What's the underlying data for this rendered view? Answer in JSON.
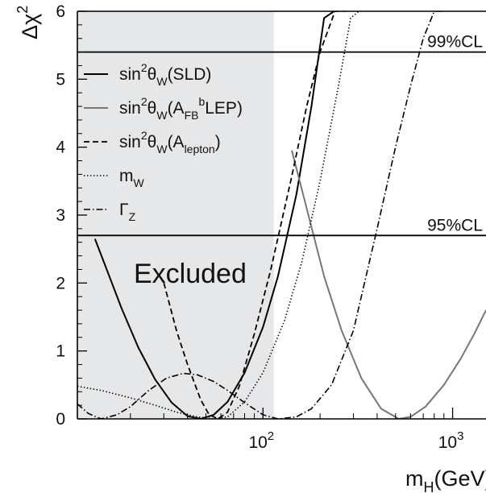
{
  "chart_data": {
    "type": "line",
    "x_scale": "log",
    "xlabel_main": "m",
    "xlabel_sub": "H",
    "xlabel_unit": "(GeV)",
    "ylabel_main": "Δχ",
    "ylabel_sup": "2",
    "xlim": [
      10.5,
      1500
    ],
    "ylim": [
      0,
      6
    ],
    "y_ticks": [
      "0",
      "1",
      "2",
      "3",
      "4",
      "5",
      "6"
    ],
    "x_ticks": [
      {
        "value": 100,
        "base": "10",
        "exp": "2"
      },
      {
        "value": 1000,
        "base": "10",
        "exp": "3"
      }
    ],
    "excluded_region": {
      "x_to": 114,
      "label": "Excluded",
      "color": "#e6e7e9"
    },
    "reference_lines": [
      {
        "y": 5.4,
        "label": "99%CL"
      },
      {
        "y": 2.7,
        "label": "95%CL"
      }
    ],
    "legend": [
      {
        "style": "solid",
        "color": "#000000",
        "parts": [
          [
            "t",
            "sin"
          ],
          [
            "sup",
            "2"
          ],
          [
            "t",
            "θ"
          ],
          [
            "sub",
            "W"
          ],
          [
            "t",
            "(SLD)"
          ]
        ]
      },
      {
        "style": "solid",
        "color": "#777777",
        "parts": [
          [
            "t",
            "sin"
          ],
          [
            "sup",
            "2"
          ],
          [
            "t",
            "θ"
          ],
          [
            "sub",
            "W"
          ],
          [
            "t",
            "(A"
          ],
          [
            "sub",
            "FB"
          ],
          [
            "sup",
            "b"
          ],
          [
            "t",
            "LEP)"
          ]
        ]
      },
      {
        "style": "dashed",
        "color": "#000000",
        "parts": [
          [
            "t",
            "sin"
          ],
          [
            "sup",
            "2"
          ],
          [
            "t",
            "θ"
          ],
          [
            "sub",
            "W"
          ],
          [
            "t",
            "(A"
          ],
          [
            "sub",
            "lepton"
          ],
          [
            "t",
            ")"
          ]
        ]
      },
      {
        "style": "dotted",
        "color": "#000000",
        "parts": [
          [
            "t",
            "m"
          ],
          [
            "sub",
            "W"
          ]
        ]
      },
      {
        "style": "dashdot",
        "color": "#000000",
        "parts": [
          [
            "t",
            "Γ"
          ],
          [
            "sub",
            "Z"
          ]
        ]
      }
    ],
    "series": [
      {
        "style": "solid",
        "color": "#000000",
        "x": [
          13,
          15,
          18,
          22,
          27,
          33,
          40,
          47,
          55,
          65,
          80,
          100,
          120,
          150,
          180,
          210,
          237
        ],
        "y": [
          2.65,
          2.2,
          1.62,
          1.05,
          0.58,
          0.24,
          0.04,
          0.0,
          0.06,
          0.25,
          0.68,
          1.35,
          2.1,
          3.3,
          4.6,
          5.9,
          6.0
        ]
      },
      {
        "style": "solid",
        "color": "#777777",
        "x": [
          142,
          170,
          210,
          260,
          330,
          420,
          520,
          600,
          720,
          900,
          1100,
          1300,
          1500
        ],
        "y": [
          3.95,
          3.1,
          2.1,
          1.3,
          0.6,
          0.15,
          0.0,
          0.03,
          0.18,
          0.5,
          0.88,
          1.25,
          1.6
        ]
      },
      {
        "style": "dashed",
        "color": "#000000",
        "x": [
          30,
          35,
          40,
          47,
          52,
          58,
          65,
          75,
          90,
          110,
          140,
          170,
          200,
          240,
          270
        ],
        "y": [
          2.0,
          1.3,
          0.8,
          0.28,
          0.06,
          0.0,
          0.1,
          0.48,
          1.25,
          2.2,
          3.5,
          4.6,
          5.4,
          6.0,
          6.0
        ]
      },
      {
        "style": "dotted",
        "color": "#000000",
        "x": [
          10.5,
          14,
          20,
          27,
          35,
          45,
          55,
          65,
          80,
          100,
          130,
          160,
          200,
          250,
          290,
          320
        ],
        "y": [
          0.48,
          0.42,
          0.31,
          0.2,
          0.1,
          0.03,
          0.0,
          0.03,
          0.25,
          0.68,
          1.45,
          2.3,
          3.5,
          4.9,
          5.9,
          6.0
        ]
      },
      {
        "style": "dashdot",
        "color": "#000000",
        "x": [
          10.5,
          12,
          14,
          17,
          20,
          25,
          31,
          38,
          45,
          55,
          65,
          80,
          100,
          120,
          150,
          180,
          230,
          300,
          400,
          500,
          600,
          700,
          800,
          900
        ],
        "y": [
          0.22,
          0.08,
          0.0,
          0.06,
          0.18,
          0.42,
          0.6,
          0.67,
          0.65,
          0.55,
          0.42,
          0.24,
          0.06,
          0.0,
          0.03,
          0.15,
          0.5,
          1.3,
          2.8,
          4.0,
          4.9,
          5.6,
          6.0,
          6.0
        ]
      }
    ]
  }
}
